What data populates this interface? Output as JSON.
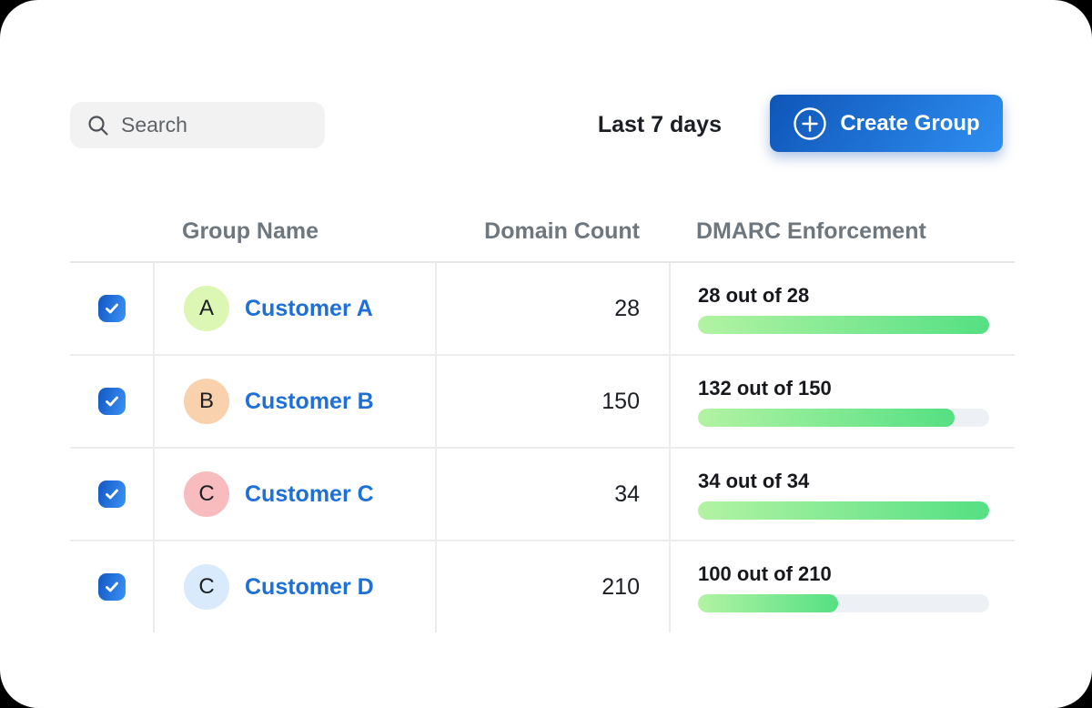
{
  "toolbar": {
    "search": {
      "placeholder": "Search"
    },
    "date_range_label": "Last 7 days",
    "create_group_label": "Create Group"
  },
  "colors": {
    "accent_blue_dark": "#0f55b8",
    "accent_blue_light": "#2f8ff2",
    "link_blue": "#1e70d6",
    "progress_green_light": "#b2f3a3",
    "progress_green_dark": "#55e083",
    "progress_track": "#edf0f4",
    "header_gray": "#6e767e"
  },
  "table": {
    "columns": [
      {
        "label": "Group Name"
      },
      {
        "label": "Domain Count"
      },
      {
        "label": "DMARC Enforcement"
      }
    ],
    "rows": [
      {
        "selected": true,
        "avatar_letter": "A",
        "avatar_color": "#dcf6b4",
        "name": "Customer A",
        "domain_count": "28",
        "enforcement_label": "28 out of 28",
        "enforcement_percent": 100
      },
      {
        "selected": true,
        "avatar_letter": "B",
        "avatar_color": "#f9d1ad",
        "name": "Customer B",
        "domain_count": "150",
        "enforcement_label": "132 out of 150",
        "enforcement_percent": 88
      },
      {
        "selected": true,
        "avatar_letter": "C",
        "avatar_color": "#f8bcbe",
        "name": "Customer C",
        "domain_count": "34",
        "enforcement_label": "34 out of 34",
        "enforcement_percent": 100
      },
      {
        "selected": true,
        "avatar_letter": "C",
        "avatar_color": "#d8eafc",
        "name": "Customer D",
        "domain_count": "210",
        "enforcement_label": "100 out of 210",
        "enforcement_percent": 48
      }
    ]
  }
}
